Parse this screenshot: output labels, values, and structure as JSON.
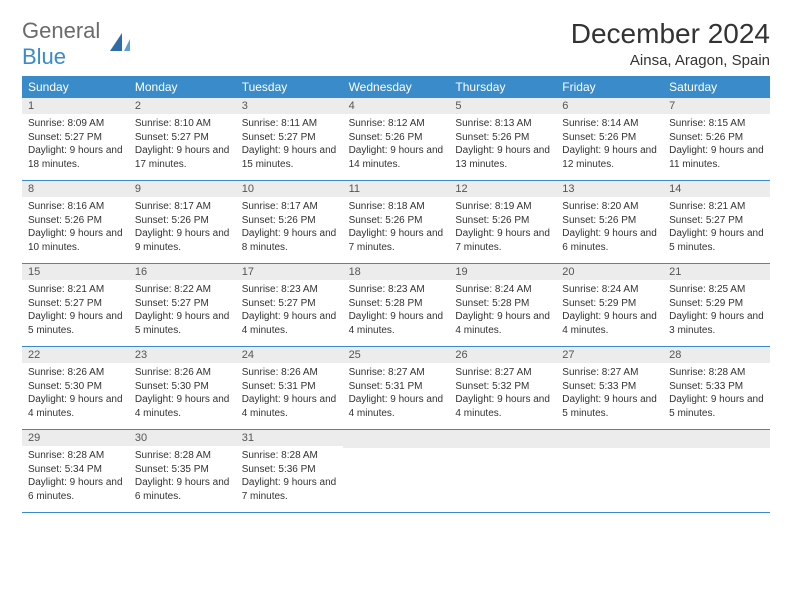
{
  "logo": {
    "text1": "General",
    "text2": "Blue"
  },
  "title": "December 2024",
  "location": "Ainsa, Aragon, Spain",
  "colors": {
    "header_bg": "#3a8bc9",
    "daynum_bg": "#ececec",
    "border": "#3a8bc9",
    "text": "#333333",
    "logo_gray": "#6b6b6b",
    "logo_blue": "#3a8bc9"
  },
  "day_names": [
    "Sunday",
    "Monday",
    "Tuesday",
    "Wednesday",
    "Thursday",
    "Friday",
    "Saturday"
  ],
  "weeks": [
    [
      {
        "n": "1",
        "sr": "8:09 AM",
        "ss": "5:27 PM",
        "dl": "9 hours and 18 minutes."
      },
      {
        "n": "2",
        "sr": "8:10 AM",
        "ss": "5:27 PM",
        "dl": "9 hours and 17 minutes."
      },
      {
        "n": "3",
        "sr": "8:11 AM",
        "ss": "5:27 PM",
        "dl": "9 hours and 15 minutes."
      },
      {
        "n": "4",
        "sr": "8:12 AM",
        "ss": "5:26 PM",
        "dl": "9 hours and 14 minutes."
      },
      {
        "n": "5",
        "sr": "8:13 AM",
        "ss": "5:26 PM",
        "dl": "9 hours and 13 minutes."
      },
      {
        "n": "6",
        "sr": "8:14 AM",
        "ss": "5:26 PM",
        "dl": "9 hours and 12 minutes."
      },
      {
        "n": "7",
        "sr": "8:15 AM",
        "ss": "5:26 PM",
        "dl": "9 hours and 11 minutes."
      }
    ],
    [
      {
        "n": "8",
        "sr": "8:16 AM",
        "ss": "5:26 PM",
        "dl": "9 hours and 10 minutes."
      },
      {
        "n": "9",
        "sr": "8:17 AM",
        "ss": "5:26 PM",
        "dl": "9 hours and 9 minutes."
      },
      {
        "n": "10",
        "sr": "8:17 AM",
        "ss": "5:26 PM",
        "dl": "9 hours and 8 minutes."
      },
      {
        "n": "11",
        "sr": "8:18 AM",
        "ss": "5:26 PM",
        "dl": "9 hours and 7 minutes."
      },
      {
        "n": "12",
        "sr": "8:19 AM",
        "ss": "5:26 PM",
        "dl": "9 hours and 7 minutes."
      },
      {
        "n": "13",
        "sr": "8:20 AM",
        "ss": "5:26 PM",
        "dl": "9 hours and 6 minutes."
      },
      {
        "n": "14",
        "sr": "8:21 AM",
        "ss": "5:27 PM",
        "dl": "9 hours and 5 minutes."
      }
    ],
    [
      {
        "n": "15",
        "sr": "8:21 AM",
        "ss": "5:27 PM",
        "dl": "9 hours and 5 minutes."
      },
      {
        "n": "16",
        "sr": "8:22 AM",
        "ss": "5:27 PM",
        "dl": "9 hours and 5 minutes."
      },
      {
        "n": "17",
        "sr": "8:23 AM",
        "ss": "5:27 PM",
        "dl": "9 hours and 4 minutes."
      },
      {
        "n": "18",
        "sr": "8:23 AM",
        "ss": "5:28 PM",
        "dl": "9 hours and 4 minutes."
      },
      {
        "n": "19",
        "sr": "8:24 AM",
        "ss": "5:28 PM",
        "dl": "9 hours and 4 minutes."
      },
      {
        "n": "20",
        "sr": "8:24 AM",
        "ss": "5:29 PM",
        "dl": "9 hours and 4 minutes."
      },
      {
        "n": "21",
        "sr": "8:25 AM",
        "ss": "5:29 PM",
        "dl": "9 hours and 3 minutes."
      }
    ],
    [
      {
        "n": "22",
        "sr": "8:26 AM",
        "ss": "5:30 PM",
        "dl": "9 hours and 4 minutes."
      },
      {
        "n": "23",
        "sr": "8:26 AM",
        "ss": "5:30 PM",
        "dl": "9 hours and 4 minutes."
      },
      {
        "n": "24",
        "sr": "8:26 AM",
        "ss": "5:31 PM",
        "dl": "9 hours and 4 minutes."
      },
      {
        "n": "25",
        "sr": "8:27 AM",
        "ss": "5:31 PM",
        "dl": "9 hours and 4 minutes."
      },
      {
        "n": "26",
        "sr": "8:27 AM",
        "ss": "5:32 PM",
        "dl": "9 hours and 4 minutes."
      },
      {
        "n": "27",
        "sr": "8:27 AM",
        "ss": "5:33 PM",
        "dl": "9 hours and 5 minutes."
      },
      {
        "n": "28",
        "sr": "8:28 AM",
        "ss": "5:33 PM",
        "dl": "9 hours and 5 minutes."
      }
    ],
    [
      {
        "n": "29",
        "sr": "8:28 AM",
        "ss": "5:34 PM",
        "dl": "9 hours and 6 minutes."
      },
      {
        "n": "30",
        "sr": "8:28 AM",
        "ss": "5:35 PM",
        "dl": "9 hours and 6 minutes."
      },
      {
        "n": "31",
        "sr": "8:28 AM",
        "ss": "5:36 PM",
        "dl": "9 hours and 7 minutes."
      },
      null,
      null,
      null,
      null
    ]
  ],
  "labels": {
    "sunrise": "Sunrise: ",
    "sunset": "Sunset: ",
    "daylight": "Daylight: "
  }
}
